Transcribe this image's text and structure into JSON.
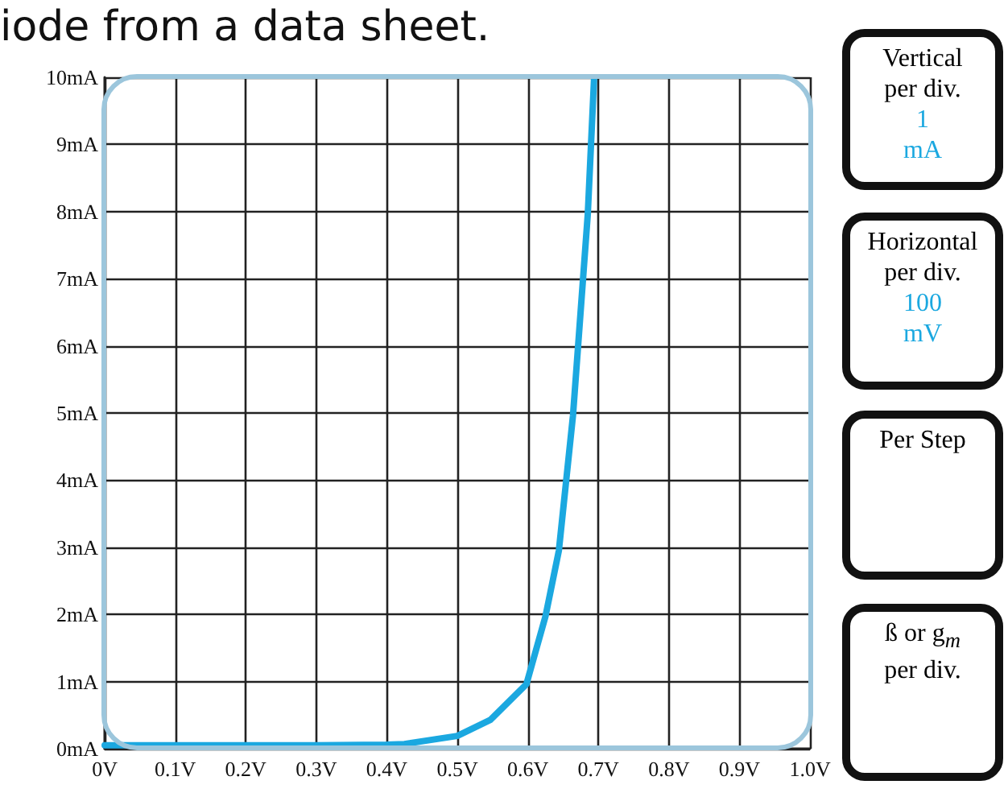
{
  "chart_data": [
    {
      "type": "line",
      "title": "iode from a data sheet.",
      "x": [
        0,
        0.1,
        0.2,
        0.3,
        0.4,
        0.425,
        0.5,
        0.547,
        0.598,
        0.625,
        0.644,
        0.664,
        0.685,
        0.694
      ],
      "series": [
        {
          "color": "#1ba8e0",
          "values": [
            0.05,
            0.05,
            0.05,
            0.05,
            0.06,
            0.07,
            0.19,
            0.43,
            0.96,
            1.97,
            2.95,
            4.96,
            7.96,
            10
          ]
        }
      ],
      "xlim": [
        0,
        1
      ],
      "xticks": [
        {
          "value": 0,
          "label": "0V"
        },
        {
          "value": 0.1,
          "label": "0.1V"
        },
        {
          "value": 0.2,
          "label": "0.2V"
        },
        {
          "value": 0.3,
          "label": "0.3V"
        },
        {
          "value": 0.4,
          "label": "0.4V"
        },
        {
          "value": 0.5,
          "label": "0.5V"
        },
        {
          "value": 0.6,
          "label": "0.6V"
        },
        {
          "value": 0.7,
          "label": "0.7V"
        },
        {
          "value": 0.8,
          "label": "0.8V"
        },
        {
          "value": 0.9,
          "label": "0.9V"
        },
        {
          "value": 1,
          "label": "1.0V"
        }
      ],
      "ylim": [
        0,
        10
      ],
      "yticks": [
        {
          "value": 0,
          "label": "0mA"
        },
        {
          "value": 1,
          "label": "1mA"
        },
        {
          "value": 2,
          "label": "2mA"
        },
        {
          "value": 3,
          "label": "3mA"
        },
        {
          "value": 4,
          "label": "4mA"
        },
        {
          "value": 5,
          "label": "5mA"
        },
        {
          "value": 6,
          "label": "6mA"
        },
        {
          "value": 7,
          "label": "7mA"
        },
        {
          "value": 8,
          "label": "8mA"
        },
        {
          "value": 9,
          "label": "9mA"
        },
        {
          "value": 10,
          "label": "10mA"
        }
      ],
      "grid": true,
      "marker": "none",
      "line_style": "solid"
    },
    {
      "type": "other",
      "title": "Vertical\nper div.",
      "subtitle": "1\nmA"
    },
    {
      "type": "other",
      "title": "Horizontal\nper div.",
      "subtitle": "100\nmV"
    },
    {
      "type": "other",
      "title": "Per Step"
    },
    {
      "type": "other",
      "title": "ß or g$_{m}$\nper div."
    }
  ]
}
